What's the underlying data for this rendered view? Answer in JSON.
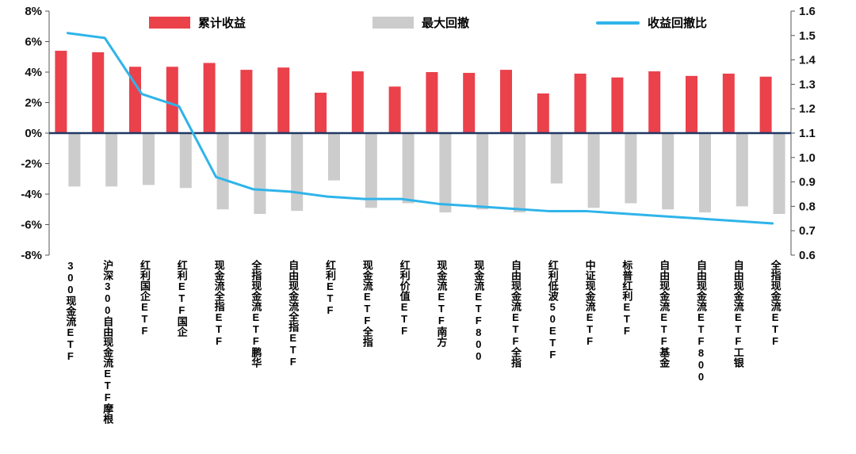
{
  "chart_data": {
    "type": "combo",
    "title": "",
    "legend_position": "top",
    "grid": false,
    "categories": [
      "300现金流ETF",
      "沪深300自由现金流ETF摩根",
      "红利国企ETF",
      "红利ETF国企",
      "现金流全指ETF",
      "全指现金流ETF鹏华",
      "自由现金流全指ETF",
      "红利ETF",
      "现金流ETF全指",
      "红利价值ETF",
      "现金流ETF南方",
      "现金流ETF800",
      "自由现金流ETF全指",
      "红利低波50ETF",
      "中证现金流ETF",
      "标普红利ETF",
      "自由现金流ETF基金",
      "自由现金流ETF800",
      "自由现金流ETF工银",
      "全指现金流ETF"
    ],
    "series": [
      {
        "name": "累计收益",
        "type": "bar",
        "axis": "left",
        "color": "#ea414b",
        "values": [
          5.4,
          5.3,
          4.35,
          4.35,
          4.6,
          4.15,
          4.3,
          2.65,
          4.05,
          3.05,
          4.0,
          3.95,
          4.15,
          2.6,
          3.9,
          3.65,
          4.05,
          3.75,
          3.9,
          3.7
        ]
      },
      {
        "name": "最大回撤",
        "type": "bar",
        "axis": "left",
        "color": "#cccccc",
        "values": [
          -3.5,
          -3.5,
          -3.4,
          -3.6,
          -5.0,
          -5.3,
          -5.1,
          -3.1,
          -4.9,
          -4.6,
          -5.2,
          -5.0,
          -5.2,
          -3.3,
          -4.9,
          -4.6,
          -5.0,
          -5.2,
          -4.8,
          -5.3
        ]
      },
      {
        "name": "收益回撤比",
        "type": "line",
        "axis": "right",
        "color": "#2fb4e9",
        "values": [
          1.51,
          1.49,
          1.26,
          1.21,
          0.92,
          0.87,
          0.86,
          0.84,
          0.83,
          0.83,
          0.81,
          0.8,
          0.79,
          0.78,
          0.78,
          0.77,
          0.76,
          0.75,
          0.74,
          0.73
        ]
      }
    ],
    "left_axis": {
      "min": -8,
      "max": 8,
      "unit": "%",
      "tick_labels": [
        "8%",
        "6%",
        "4%",
        "2%",
        "0%",
        "-2%",
        "-4%",
        "-6%",
        "-8%"
      ]
    },
    "right_axis": {
      "min": 0.6,
      "max": 1.6,
      "tick_labels": [
        "1.6",
        "1.5",
        "1.4",
        "1.3",
        "1.2",
        "1.1",
        "1.0",
        "0.9",
        "0.8",
        "0.7",
        "0.6"
      ]
    },
    "zero_line_color": "#203864",
    "axis_color": "#555555"
  }
}
